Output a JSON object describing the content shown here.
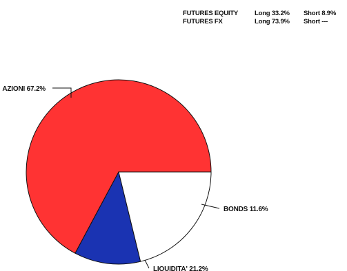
{
  "futures": [
    {
      "name": "FUTURES EQUITY",
      "long": "Long 33.2%",
      "short": "Short 8.9%"
    },
    {
      "name": "FUTURES FX",
      "long": "Long 73.9%",
      "short": "Short ---"
    }
  ],
  "chart_data": {
    "type": "pie",
    "title": "",
    "slices": [
      {
        "label": "AZIONI 67.2%",
        "value": 67.2,
        "color": "#ff3333"
      },
      {
        "label": "BONDS 11.6%",
        "value": 11.6,
        "color": "#1a33b2"
      },
      {
        "label": "LIQUIDITA' 21.2%",
        "value": 21.2,
        "color": "#ffffff"
      }
    ],
    "legend": "none",
    "labels": "outside-with-leader-lines"
  }
}
